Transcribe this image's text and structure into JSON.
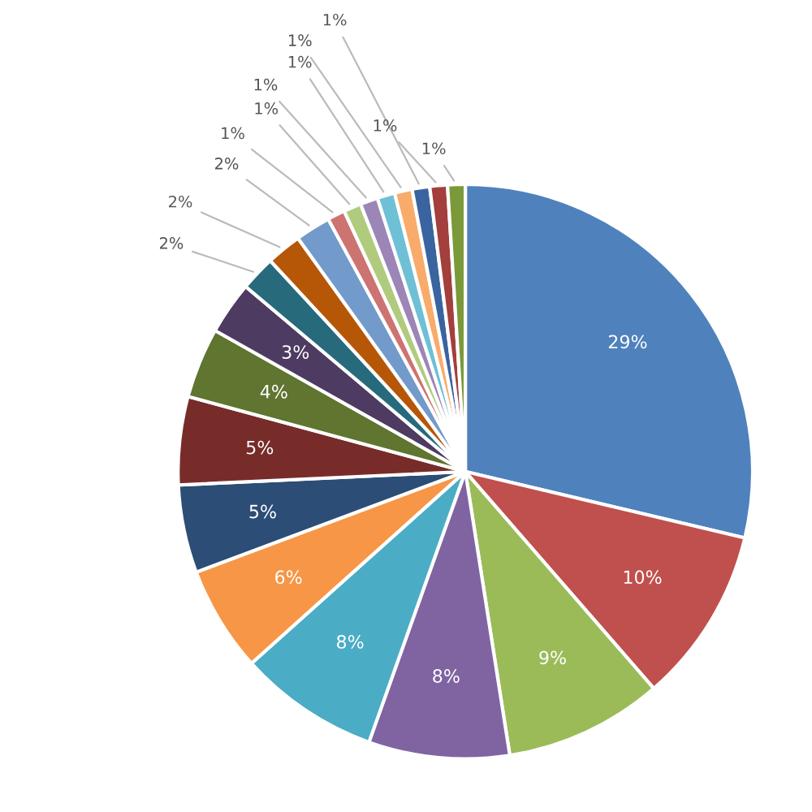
{
  "chart_data": {
    "type": "pie",
    "categories": [
      null,
      null,
      null,
      null,
      null,
      null,
      null,
      null,
      null,
      null,
      null,
      null,
      null,
      null,
      null,
      null,
      null,
      null,
      null,
      null,
      null
    ],
    "values": [
      29,
      10,
      9,
      8,
      8,
      6,
      5,
      5,
      4,
      3,
      2,
      2,
      2,
      1,
      1,
      1,
      1,
      1,
      1,
      1,
      1
    ],
    "value_labels": [
      "29%",
      "10%",
      "9%",
      "8%",
      "8%",
      "6%",
      "5%",
      "5%",
      "4%",
      "3%",
      "2%",
      "2%",
      "2%",
      "1%",
      "1%",
      "1%",
      "1%",
      "1%",
      "1%",
      "1%",
      "1%"
    ],
    "colors": [
      "#4f81bd",
      "#c0504d",
      "#9bbb59",
      "#8064a2",
      "#4bacc6",
      "#f79646",
      "#2c4d75",
      "#772c2a",
      "#5f7530",
      "#4d3b62",
      "#276a7c",
      "#b65708",
      "#729aca",
      "#cd7371",
      "#b0cb7e",
      "#9c86b8",
      "#6ec0d6",
      "#f9ab6b",
      "#3a64a0",
      "#a33f3c",
      "#7a9a3a"
    ]
  }
}
